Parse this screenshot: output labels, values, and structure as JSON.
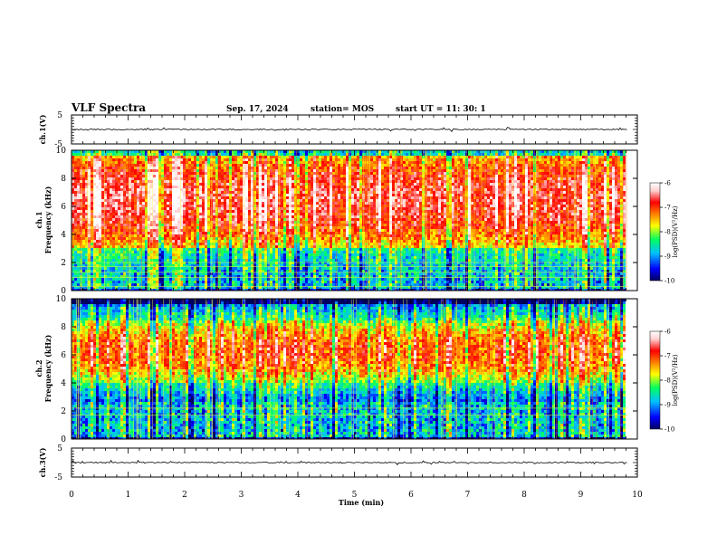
{
  "header": {
    "title": "VLF Spectra",
    "date": "Sep. 17, 2024",
    "station": "station= MOS",
    "start_ut": "start  UT  =   11: 30: 1"
  },
  "colors": {
    "spectrum_scale": [
      "#000060",
      "#0000ff",
      "#00c0ff",
      "#00ff60",
      "#ffff00",
      "#ff8000",
      "#ff0000",
      "#ffd0d0",
      "#ffffff"
    ]
  },
  "chart_data": [
    {
      "type": "line",
      "name": "waveform-ch1",
      "ylabel": "ch.1(V)",
      "ylim": [
        -5,
        5
      ],
      "y_ticks": [
        "5",
        "-5"
      ],
      "trace_level": 0
    },
    {
      "type": "heatmap",
      "name": "spectrogram-ch1",
      "ylabel_top": "ch.1",
      "ylabel": "Frequency (kHz)",
      "ylim": [
        0,
        10
      ],
      "y_ticks": [
        "0",
        "2",
        "4",
        "6",
        "8",
        "10"
      ],
      "xlim": [
        0,
        10
      ],
      "data_end_min": 9.83,
      "band_khz": [
        3,
        10
      ],
      "hum_lines_khz": [
        0.3,
        0.95,
        1.3,
        1.7,
        2.0
      ],
      "colorbar": {
        "label": "log(PSD)(V²/Hz)",
        "range": [
          -10,
          -6
        ],
        "ticks": [
          "-6",
          "-7",
          "-8",
          "-9",
          "-10"
        ]
      }
    },
    {
      "type": "heatmap",
      "name": "spectrogram-ch2",
      "ylabel_top": "ch.2",
      "ylabel": "Frequency (kHz)",
      "ylim": [
        0,
        10
      ],
      "y_ticks": [
        "0",
        "2",
        "4",
        "6",
        "8",
        "10"
      ],
      "xlim": [
        0,
        10
      ],
      "data_end_min": 9.83,
      "band_khz": [
        4,
        8.5
      ],
      "hum_lines_khz": [
        1.7,
        2.2
      ],
      "colorbar": {
        "label": "log(PSD)(V²/Hz)",
        "range": [
          -10,
          -6
        ],
        "ticks": [
          "-6",
          "-7",
          "-8",
          "-9",
          "-10"
        ]
      }
    },
    {
      "type": "line",
      "name": "waveform-ch3",
      "ylabel": "ch.3(V)",
      "ylim": [
        -5,
        5
      ],
      "y_ticks": [
        "5",
        "-5"
      ],
      "trace_level": 0,
      "xlabel": "Time  (min)",
      "xlim": [
        0,
        10
      ],
      "x_ticks": [
        "0",
        "1",
        "2",
        "3",
        "4",
        "5",
        "6",
        "7",
        "8",
        "9",
        "10"
      ]
    }
  ]
}
